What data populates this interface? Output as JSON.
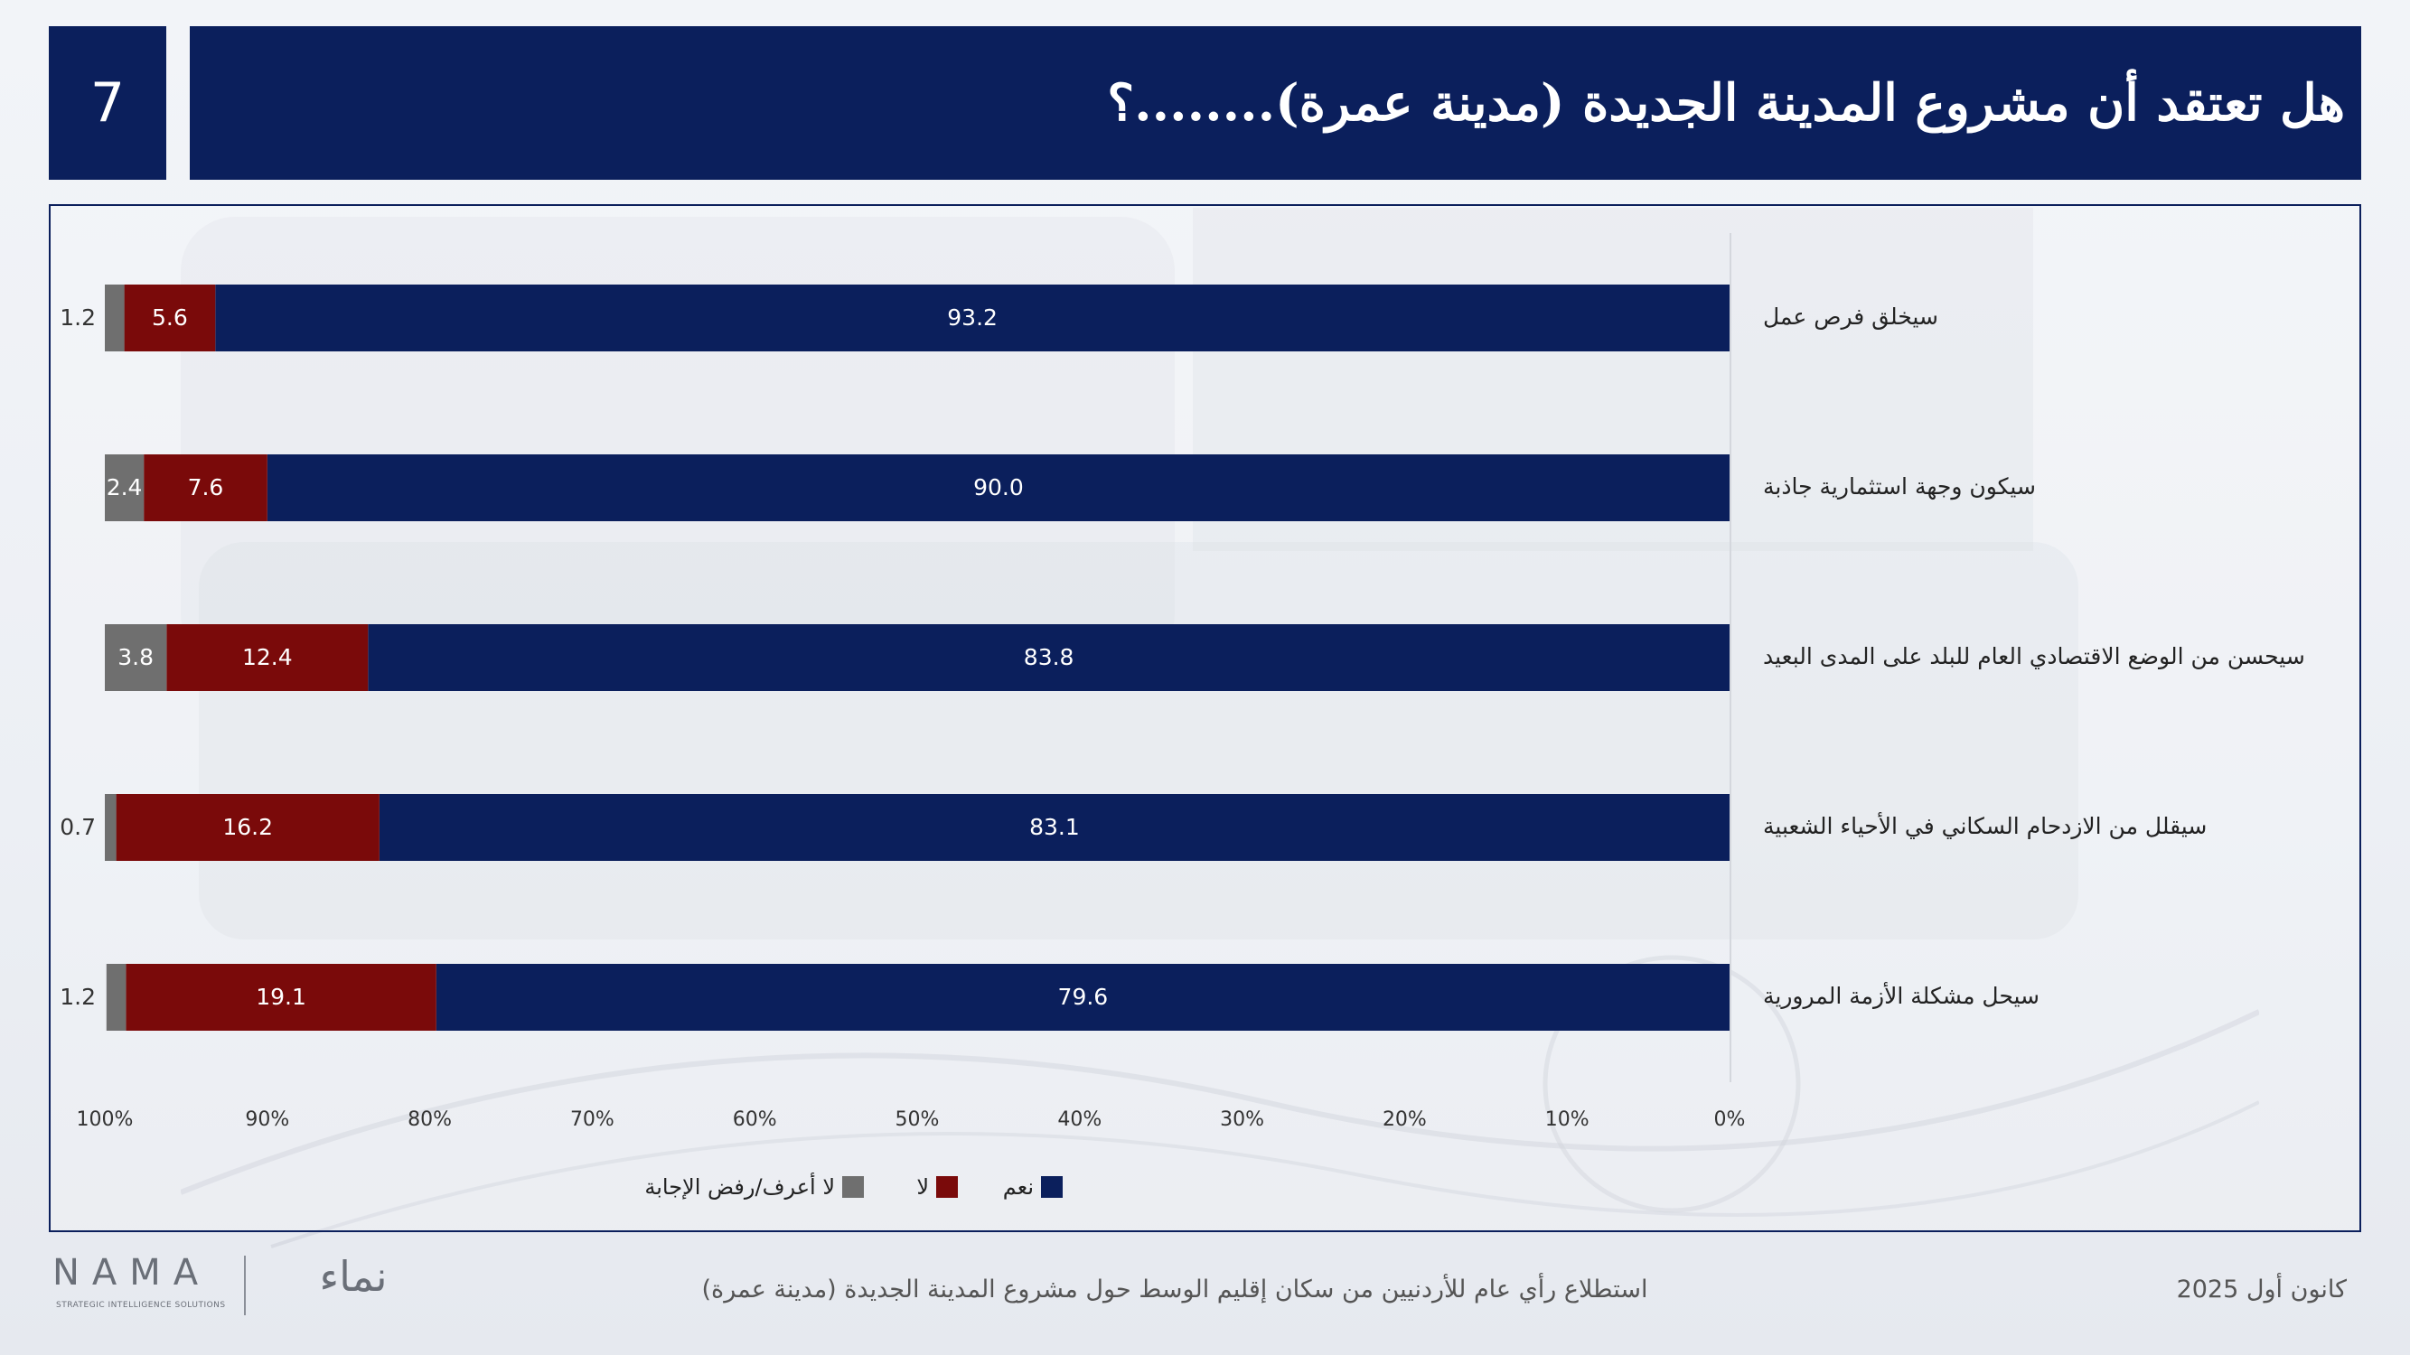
{
  "header": {
    "slide_number": "7",
    "title": "هل تعتقد أن مشروع المدينة الجديدة (مدينة عمرة)........؟"
  },
  "colors": {
    "navy": "#0b1f5c",
    "yes": "#0b1f5c",
    "no": "#7a0a0a",
    "dont_know": "#6f6f6f"
  },
  "chart_data": {
    "type": "bar",
    "orientation": "horizontal",
    "stacked": true,
    "x_direction": "right-to-left",
    "categories": [
      "سيخلق فرص عمل",
      "سيكون وجهة استثمارية جاذبة",
      "سيحسن من الوضع الاقتصادي العام للبلد على المدى البعيد",
      "سيقلل من الازدحام السكاني في الأحياء الشعبية",
      "سيحل مشكلة الأزمة المرورية"
    ],
    "series": [
      {
        "name": "نعم",
        "color": "#0b1f5c",
        "values": [
          93.2,
          90.0,
          83.8,
          83.1,
          79.6
        ],
        "labels": [
          "93.2",
          "90.0",
          "83.8",
          "83.1",
          "79.6"
        ]
      },
      {
        "name": "لا",
        "color": "#7a0a0a",
        "values": [
          5.6,
          7.6,
          12.4,
          16.2,
          19.1
        ],
        "labels": [
          "5.6",
          "7.6",
          "12.4",
          "16.2",
          "19.1"
        ]
      },
      {
        "name": "لا أعرف/رفض الإجابة",
        "color": "#6f6f6f",
        "values": [
          1.2,
          2.4,
          3.8,
          0.7,
          1.2
        ],
        "labels": [
          "1.2",
          "2.4",
          "3.8",
          "0.7",
          "1.2"
        ]
      }
    ],
    "xlim": [
      0,
      100
    ],
    "x_ticks": [
      "0%",
      "10%",
      "20%",
      "30%",
      "40%",
      "50%",
      "60%",
      "70%",
      "80%",
      "90%",
      "100%"
    ],
    "legend_position": "bottom",
    "grid": false
  },
  "footer": {
    "date": "كانون أول 2025",
    "survey": "استطلاع رأي عام للأردنيين من سكان إقليم الوسط حول مشروع المدينة الجديدة (مدينة عمرة)",
    "logo_latin": "NAMA",
    "logo_tagline": "STRATEGIC INTELLIGENCE SOLUTIONS",
    "logo_arabic": "نماء"
  }
}
